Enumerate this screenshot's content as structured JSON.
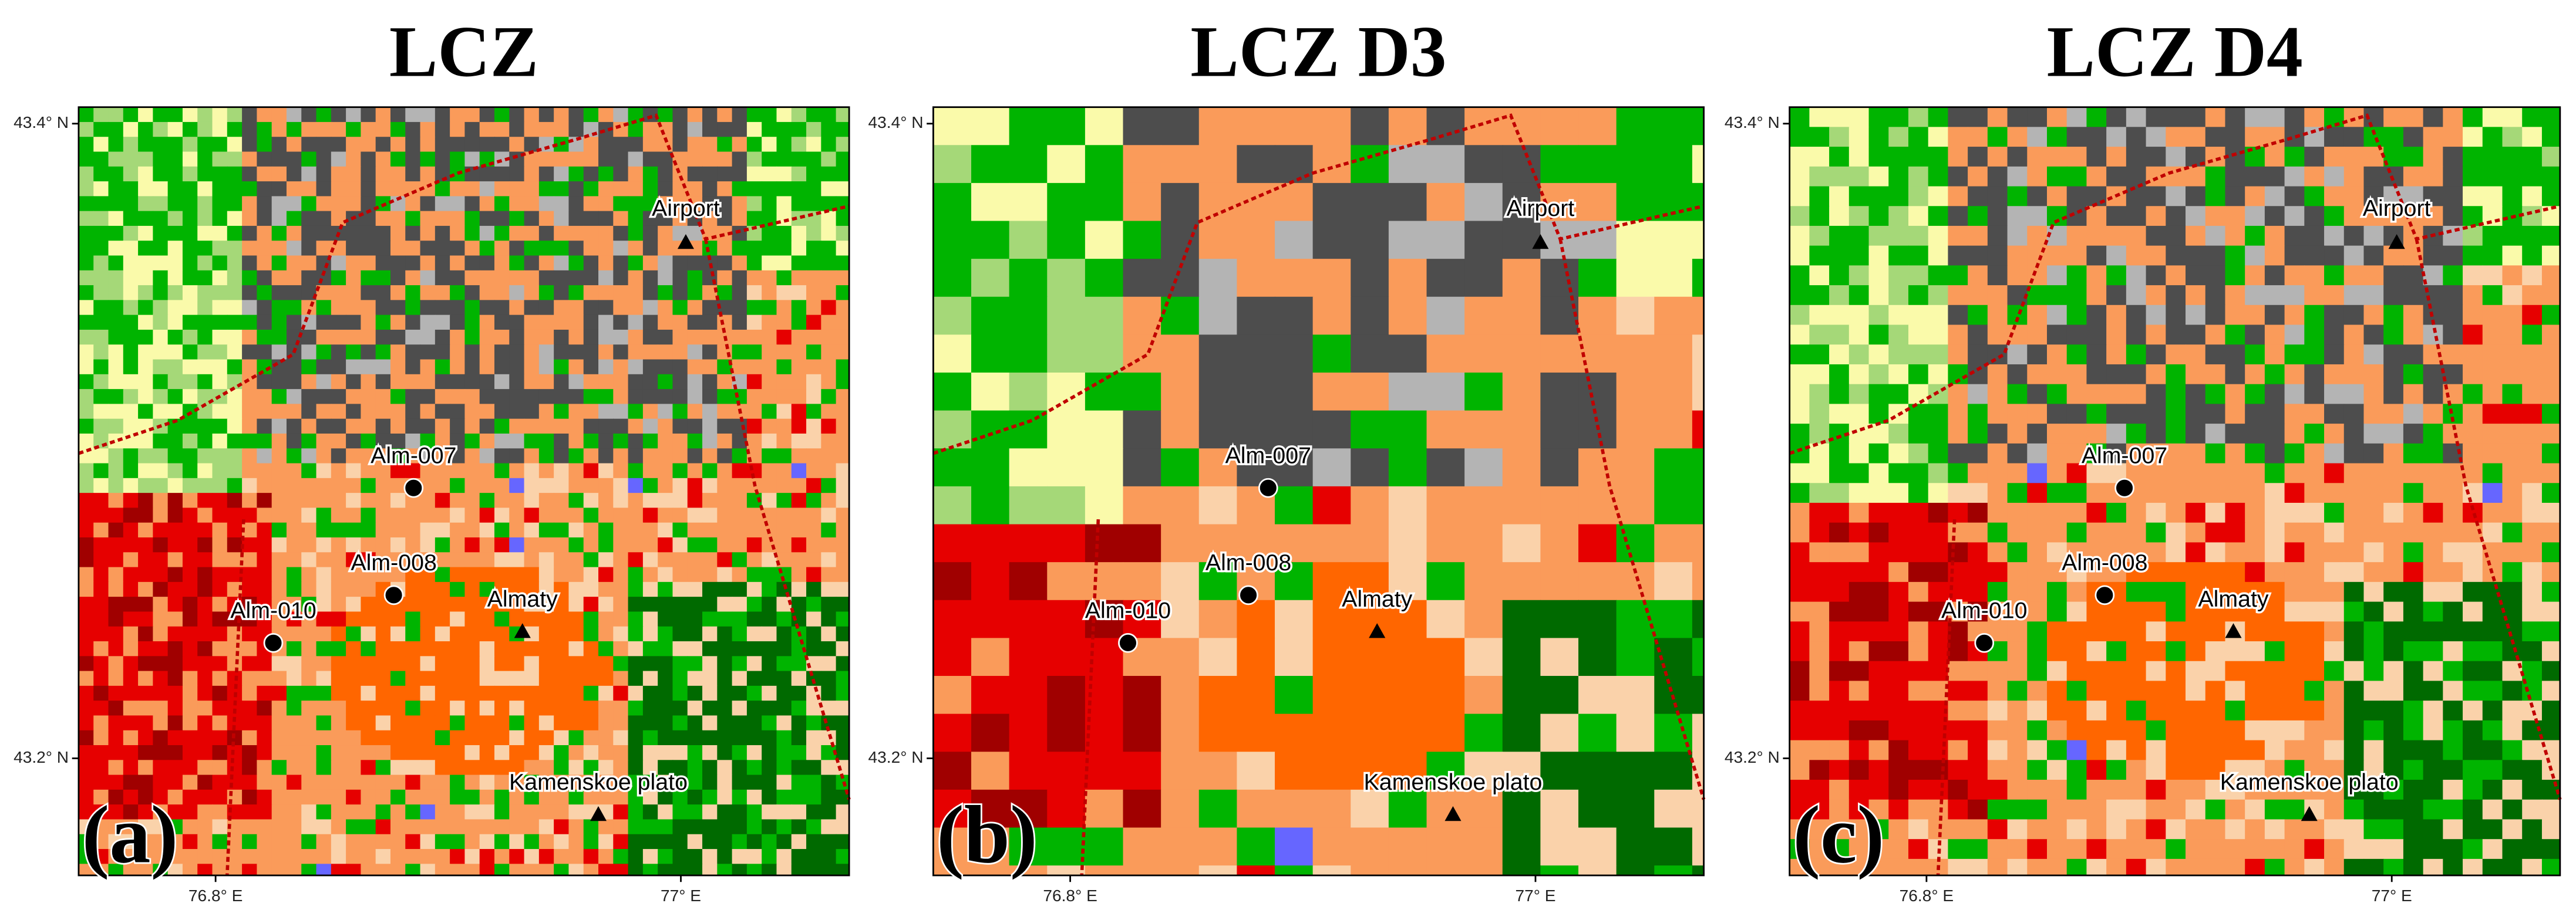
{
  "panels": [
    {
      "title": "LCZ",
      "label": "(a)",
      "xticks": [
        "76.8° E",
        "77° E"
      ],
      "yticks": [
        "43.4° N",
        "43.2° N"
      ],
      "places": [
        "Airport",
        "Alm-007",
        "Alm-008",
        "Alm-010",
        "Almaty",
        "Kamenskoe plato"
      ]
    },
    {
      "title": "LCZ D3",
      "label": "(b)",
      "xticks": [
        "76.8° E",
        "77° E"
      ],
      "yticks": [
        "43.4° N",
        "43.2° N"
      ],
      "places": [
        "Airport",
        "Alm-007",
        "Alm-008",
        "Alm-010",
        "Almaty",
        "Kamenskoe plato"
      ]
    },
    {
      "title": "LCZ D4",
      "label": "(c)",
      "xticks": [
        "76.8° E",
        "77° E"
      ],
      "yticks": [
        "43.4° N",
        "43.2° N"
      ],
      "places": [
        "Airport",
        "Alm-007",
        "Alm-008",
        "Alm-010",
        "Almaty",
        "Kamenskoe plato"
      ]
    }
  ]
}
